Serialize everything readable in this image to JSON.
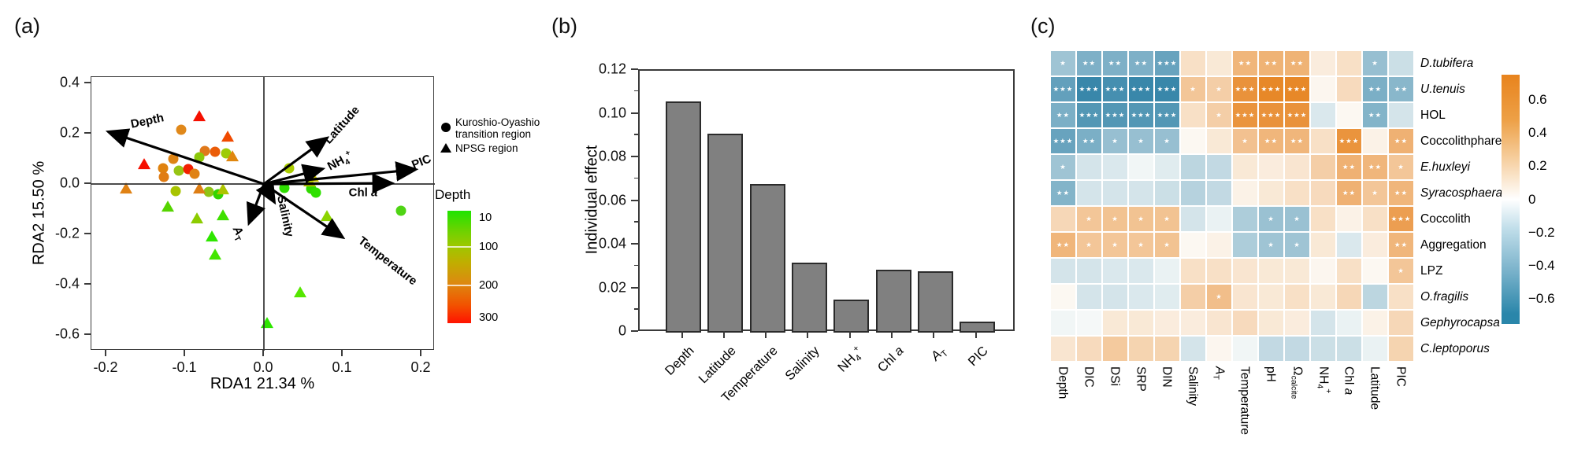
{
  "chart_data": [
    {
      "id": "a",
      "panel_label": "(a)",
      "type": "scatter",
      "xlabel": "RDA1 21.34 %",
      "ylabel": "RDA2 15.50 %",
      "xlim": [
        -0.219,
        0.217
      ],
      "ylim": [
        -0.66,
        0.425
      ],
      "xticks": [
        -0.2,
        -0.1,
        0.0,
        0.1,
        0.2
      ],
      "yticks": [
        0.4,
        0.2,
        0.0,
        -0.2,
        -0.4,
        -0.6
      ],
      "arrows": [
        {
          "name": "depth",
          "label": "Depth",
          "x": -0.195,
          "y": 0.205,
          "lx": -0.148,
          "ly": 0.25,
          "rot": -12
        },
        {
          "name": "latitude",
          "label": "Latitude",
          "x": 0.078,
          "y": 0.178,
          "lx": 0.099,
          "ly": 0.233,
          "rot": -48
        },
        {
          "name": "ammonium",
          "label": "NH_{4}^{+}",
          "x": 0.072,
          "y": 0.058,
          "lx": 0.097,
          "ly": 0.086,
          "rot": -28
        },
        {
          "name": "pic",
          "label": "PIC",
          "x": 0.19,
          "y": 0.057,
          "lx": 0.2,
          "ly": 0.089,
          "rot": -22
        },
        {
          "name": "chl-a",
          "label": "Chl *a*",
          "x": 0.16,
          "y": 0.003,
          "lx": 0.126,
          "ly": -0.035,
          "rot": 0
        },
        {
          "name": "temperature",
          "label": "Temperature",
          "x": 0.098,
          "y": -0.208,
          "lx": 0.157,
          "ly": -0.306,
          "rot": 38
        },
        {
          "name": "salinity",
          "label": "Salinity",
          "x": 0.012,
          "y": -0.065,
          "lx": 0.027,
          "ly": -0.128,
          "rot": 78
        },
        {
          "name": "alkalinity",
          "label": "*A*_{T}",
          "x": -0.018,
          "y": -0.148,
          "lx": -0.033,
          "ly": -0.198,
          "rot": 62
        }
      ],
      "series": [
        {
          "name": "Kuroshio-Oyashio transition region",
          "marker": "circle",
          "points": [
            [
              -0.105,
              0.215,
              "#e0881a"
            ],
            [
              -0.075,
              0.13,
              "#e0791a"
            ],
            [
              -0.062,
              0.128,
              "#ea5c08"
            ],
            [
              -0.048,
              0.122,
              "#9ecb06"
            ],
            [
              -0.115,
              0.1,
              "#de8414"
            ],
            [
              -0.082,
              0.105,
              "#8cc80a"
            ],
            [
              -0.128,
              0.062,
              "#e0820f"
            ],
            [
              -0.108,
              0.052,
              "#97c414"
            ],
            [
              -0.127,
              0.028,
              "#e07c14"
            ],
            [
              -0.096,
              0.06,
              "#f22000"
            ],
            [
              -0.088,
              0.04,
              "#e08214"
            ],
            [
              -0.112,
              -0.028,
              "#a8c400"
            ],
            [
              -0.07,
              -0.03,
              "#8fc414"
            ],
            [
              -0.058,
              -0.042,
              "#33d400"
            ],
            [
              0.026,
              -0.015,
              "#2edd00"
            ],
            [
              0.06,
              -0.02,
              "#30d800"
            ],
            [
              0.066,
              -0.033,
              "#2ee000"
            ],
            [
              0.174,
              -0.105,
              "#4fd414"
            ],
            [
              0.032,
              0.062,
              "#aacc00"
            ]
          ]
        },
        {
          "name": "NPSG region",
          "marker": "triangle",
          "points": [
            [
              -0.082,
              0.268,
              "#f50f00"
            ],
            [
              -0.046,
              0.186,
              "#f04a00"
            ],
            [
              -0.152,
              0.078,
              "#f50f00"
            ],
            [
              -0.175,
              -0.018,
              "#e08214"
            ],
            [
              -0.082,
              -0.02,
              "#de7e14"
            ],
            [
              -0.052,
              -0.022,
              "#adc400"
            ],
            [
              -0.122,
              -0.092,
              "#55d400"
            ],
            [
              -0.085,
              -0.138,
              "#8ccc00"
            ],
            [
              -0.052,
              -0.125,
              "#3fe000"
            ],
            [
              -0.066,
              -0.208,
              "#2ee600"
            ],
            [
              -0.062,
              -0.282,
              "#44e600"
            ],
            [
              -0.04,
              0.108,
              "#e0870f"
            ],
            [
              0.062,
              0.028,
              "#c8c400"
            ],
            [
              0.058,
              0.008,
              "#b4c800"
            ],
            [
              0.08,
              -0.128,
              "#8cd400"
            ],
            [
              0.046,
              -0.43,
              "#55e600"
            ],
            [
              0.004,
              -0.552,
              "#2ee600"
            ]
          ]
        }
      ],
      "legend": {
        "line1": "Kuroshio-Oyashio",
        "line2": "transition region",
        "line3": "NPSG region"
      },
      "colorbar": {
        "title": "Depth",
        "ticks": [
          "10",
          "100",
          "200",
          "300"
        ],
        "tick_pos": [
          0.063,
          0.322,
          0.664,
          0.951
        ]
      }
    },
    {
      "id": "b",
      "panel_label": "(b)",
      "type": "bar",
      "ylabel": "Individual effect",
      "categories": [
        "Depth",
        "Latitude",
        "Temperature",
        "Salinity",
        "NH_{4}^{+}",
        "Chl *a*",
        "*A*_{T}",
        "PIC"
      ],
      "values": [
        0.106,
        0.091,
        0.068,
        0.032,
        0.015,
        0.029,
        0.028,
        0.005
      ],
      "ylim": [
        0,
        0.12
      ],
      "yticks": [
        0,
        0.02,
        0.04,
        0.06,
        0.08,
        0.1,
        0.12
      ],
      "bar_color": "#808080",
      "bar_border": "#2b2b2b"
    },
    {
      "id": "c",
      "panel_label": "(c)",
      "type": "heatmap",
      "rows": [
        "*D.tubifera*",
        "*U.tenuis*",
        "HOL",
        "Coccolithphare",
        "*E.huxleyi*",
        "*Syracosphaera*",
        "Coccolith",
        "Aggregation",
        "LPZ",
        "*O.fragilis*",
        "*Gephyrocapsa*",
        "*C.leptoporus*"
      ],
      "columns": [
        "Depth",
        "DIC",
        "DSi",
        "SRP",
        "DIN",
        "Salinity",
        "*A*_{T}",
        "Temperature",
        "pH",
        "Ω_{calcite}",
        "NH_{4}^{+}",
        "Chl *a*",
        "Latitude",
        "PIC"
      ],
      "values": [
        [
          -0.3,
          -0.42,
          -0.42,
          -0.42,
          -0.5,
          0.15,
          0.1,
          0.4,
          0.42,
          0.42,
          0.08,
          0.15,
          -0.33,
          -0.15
        ],
        [
          -0.52,
          -0.68,
          -0.63,
          -0.68,
          -0.68,
          0.3,
          0.25,
          0.63,
          0.7,
          0.7,
          0.03,
          0.18,
          -0.43,
          -0.38
        ],
        [
          -0.43,
          -0.58,
          -0.58,
          -0.58,
          -0.58,
          0.15,
          0.25,
          0.62,
          0.63,
          0.63,
          -0.1,
          0.02,
          -0.4,
          -0.12
        ],
        [
          -0.5,
          -0.43,
          -0.33,
          -0.33,
          -0.33,
          0.02,
          0.1,
          0.33,
          0.4,
          0.4,
          0.15,
          0.62,
          0.05,
          0.43
        ],
        [
          -0.3,
          -0.12,
          -0.1,
          -0.03,
          -0.08,
          -0.2,
          -0.18,
          0.1,
          0.08,
          0.12,
          0.25,
          0.43,
          0.4,
          0.3
        ],
        [
          -0.4,
          -0.12,
          -0.12,
          -0.12,
          -0.15,
          -0.22,
          -0.18,
          0.05,
          0.1,
          0.15,
          0.18,
          0.43,
          0.3,
          0.4
        ],
        [
          0.2,
          0.3,
          0.32,
          0.32,
          0.32,
          -0.12,
          -0.05,
          -0.25,
          -0.32,
          -0.32,
          0.15,
          0.05,
          0.15,
          0.55
        ],
        [
          0.4,
          0.3,
          0.3,
          0.3,
          0.32,
          0.02,
          0.05,
          -0.25,
          -0.3,
          -0.3,
          0.1,
          -0.1,
          0.08,
          0.4
        ],
        [
          -0.12,
          -0.12,
          -0.1,
          -0.1,
          -0.05,
          0.15,
          0.15,
          0.12,
          0.1,
          0.1,
          0.03,
          0.15,
          0.02,
          0.3
        ],
        [
          0.02,
          -0.12,
          -0.12,
          -0.1,
          -0.08,
          0.25,
          0.35,
          0.12,
          0.1,
          0.15,
          0.1,
          0.2,
          -0.2,
          0.15
        ],
        [
          -0.03,
          -0.02,
          0.1,
          0.1,
          0.08,
          0.08,
          0.12,
          0.18,
          0.1,
          0.08,
          -0.12,
          -0.05,
          0.05,
          0.2
        ],
        [
          0.12,
          0.18,
          0.28,
          0.22,
          0.22,
          -0.12,
          0.03,
          -0.03,
          -0.18,
          -0.18,
          -0.15,
          -0.15,
          -0.05,
          0.22
        ]
      ],
      "significance": [
        [
          "*",
          "**",
          "**",
          "**",
          "***",
          "",
          "",
          "**",
          "**",
          "**",
          "",
          "",
          "*",
          ""
        ],
        [
          "***",
          "***",
          "***",
          "***",
          "***",
          "*",
          "*",
          "***",
          "***",
          "***",
          "",
          "",
          "**",
          "**"
        ],
        [
          "**",
          "***",
          "***",
          "***",
          "***",
          "",
          "*",
          "***",
          "***",
          "***",
          "",
          "",
          "**",
          ""
        ],
        [
          "***",
          "**",
          "*",
          "*",
          "*",
          "",
          "",
          "*",
          "**",
          "**",
          "",
          "***",
          "",
          "**"
        ],
        [
          "*",
          "",
          "",
          "",
          "",
          "",
          "",
          "",
          "",
          "",
          "",
          "**",
          "**",
          "*"
        ],
        [
          "**",
          "",
          "",
          "",
          "",
          "",
          "",
          "",
          "",
          "",
          "",
          "**",
          "*",
          "**"
        ],
        [
          "",
          "*",
          "*",
          "*",
          "*",
          "",
          "",
          "",
          "*",
          "*",
          "",
          "",
          "",
          "***"
        ],
        [
          "**",
          "*",
          "*",
          "*",
          "*",
          "",
          "",
          "",
          "*",
          "*",
          "",
          "",
          "",
          "**"
        ],
        [
          "",
          "",
          "",
          "",
          "",
          "",
          "",
          "",
          "",
          "",
          "",
          "",
          "",
          "*"
        ],
        [
          "",
          "",
          "",
          "",
          "",
          "",
          "*",
          "",
          "",
          "",
          "",
          "",
          "",
          ""
        ],
        [
          "",
          "",
          "",
          "",
          "",
          "",
          "",
          "",
          "",
          "",
          "",
          "",
          "",
          ""
        ],
        [
          "",
          "",
          "",
          "",
          "",
          "",
          "",
          "",
          "",
          "",
          "",
          "",
          "",
          ""
        ]
      ],
      "colorbar": {
        "ticks": [
          0.6,
          0.4,
          0.2,
          0,
          -0.2,
          -0.4,
          -0.6
        ],
        "vmin": -0.75,
        "vmax": 0.75,
        "positive_color": "#e6801a",
        "negative_color": "#277ca3"
      }
    }
  ]
}
